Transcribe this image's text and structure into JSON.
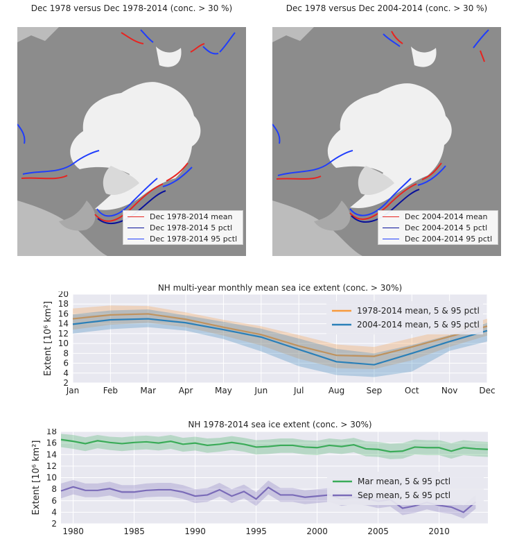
{
  "maps": [
    {
      "title": "Dec 1978 versus Dec 1978-2014 (conc. > 30 %)",
      "legend": [
        "Dec 1978-2014 mean",
        "Dec 1978-2014 5 pctl",
        "Dec 1978-2014 95 pctl"
      ]
    },
    {
      "title": "Dec 1978 versus Dec 2004-2014 (conc. > 30 %)",
      "legend": [
        "Dec 2004-2014 mean",
        "Dec 2004-2014 5 pctl",
        "Dec 2004-2014 95 pctl"
      ]
    }
  ],
  "colors": {
    "land": "#8c8c8c",
    "ice": "#f0f0f0",
    "ocean_outside": "#bcbcbc",
    "mean": "#e8231f",
    "p5": "#08109a",
    "p95": "#1f3dfc",
    "orange": "#f89a3c",
    "steel": "#2a7fb8",
    "green": "#3aab58",
    "purple": "#7a6bb8",
    "axes_bg": "#e8e8f0"
  },
  "chart_data": [
    {
      "type": "line",
      "title": "NH multi-year monthly mean sea ice extent (conc. > 30%)",
      "xlabel": "",
      "ylabel": "Extent [10⁶ km²]",
      "ylim": [
        2,
        20
      ],
      "yticks": [
        2,
        4,
        6,
        8,
        10,
        12,
        14,
        16,
        18,
        20
      ],
      "categories": [
        "Jan",
        "Feb",
        "Mar",
        "Apr",
        "May",
        "Jun",
        "Jul",
        "Aug",
        "Sep",
        "Oct",
        "Nov",
        "Dec"
      ],
      "legend_position": "upper-right",
      "series": [
        {
          "name": "1978-2014 mean, 5 & 95 pctl",
          "color": "orange",
          "values": [
            15.0,
            15.8,
            16.0,
            14.9,
            13.3,
            11.8,
            9.5,
            7.6,
            7.4,
            9.3,
            11.4,
            13.5
          ],
          "p5": [
            12.8,
            13.8,
            14.2,
            13.3,
            11.6,
            9.6,
            6.9,
            5.0,
            4.8,
            6.6,
            9.3,
            11.6
          ],
          "p95": [
            17.1,
            17.7,
            17.6,
            16.3,
            14.8,
            13.5,
            11.7,
            9.8,
            9.3,
            11.1,
            12.9,
            15.0
          ]
        },
        {
          "name": "2004-2014 mean, 5 & 95 pctl",
          "color": "steel",
          "values": [
            13.9,
            14.8,
            15.0,
            14.2,
            12.8,
            11.3,
            8.8,
            6.3,
            5.7,
            8.0,
            10.4,
            12.6
          ],
          "p5": [
            12.0,
            12.9,
            13.3,
            12.6,
            10.9,
            8.4,
            5.4,
            3.6,
            3.2,
            4.3,
            8.5,
            10.4
          ],
          "p95": [
            15.9,
            16.7,
            16.9,
            15.7,
            14.4,
            13.0,
            11.0,
            8.9,
            8.0,
            9.7,
            11.7,
            14.2
          ]
        }
      ]
    },
    {
      "type": "line",
      "title": "NH 1978-2014 sea ice extent (conc. > 30%)",
      "xlabel": "",
      "ylabel": "Extent [10⁶ km²]",
      "xlim": [
        1979,
        2014
      ],
      "ylim": [
        2,
        18
      ],
      "xticks": [
        1980,
        1985,
        1990,
        1995,
        2000,
        2005,
        2010
      ],
      "yticks": [
        2,
        4,
        6,
        8,
        10,
        12,
        14,
        16,
        18
      ],
      "legend_position": "right",
      "x": [
        1979,
        1980,
        1981,
        1982,
        1983,
        1984,
        1985,
        1986,
        1987,
        1988,
        1989,
        1990,
        1991,
        1992,
        1993,
        1994,
        1995,
        1996,
        1997,
        1998,
        1999,
        2000,
        2001,
        2002,
        2003,
        2004,
        2005,
        2006,
        2007,
        2008,
        2009,
        2010,
        2011,
        2012,
        2013,
        2014
      ],
      "series": [
        {
          "name": "Mar mean, 5 & 95 pctl",
          "color": "green",
          "values": [
            16.6,
            16.3,
            15.9,
            16.4,
            16.1,
            15.9,
            16.1,
            16.2,
            16.0,
            16.3,
            15.8,
            16.0,
            15.6,
            15.8,
            16.1,
            15.8,
            15.3,
            15.4,
            15.6,
            15.6,
            15.3,
            15.2,
            15.6,
            15.4,
            15.7,
            15.0,
            14.9,
            14.5,
            14.6,
            15.3,
            15.2,
            15.2,
            14.6,
            15.2,
            15.0,
            14.9
          ],
          "p5": [
            15.3,
            15.0,
            14.6,
            15.1,
            14.8,
            14.6,
            14.8,
            14.9,
            14.7,
            15.0,
            14.5,
            14.7,
            14.3,
            14.5,
            14.8,
            14.5,
            14.0,
            14.1,
            14.3,
            14.3,
            14.0,
            13.9,
            14.3,
            14.1,
            14.4,
            13.7,
            13.6,
            13.2,
            13.3,
            14.0,
            13.9,
            13.9,
            13.3,
            13.9,
            13.7,
            13.6
          ],
          "p95": [
            17.6,
            17.4,
            17.0,
            17.4,
            17.1,
            17.0,
            17.2,
            17.3,
            17.1,
            17.4,
            16.9,
            17.1,
            16.8,
            16.9,
            17.2,
            16.9,
            16.5,
            16.6,
            16.8,
            16.8,
            16.5,
            16.4,
            16.8,
            16.6,
            16.9,
            16.3,
            16.2,
            15.9,
            16.0,
            16.6,
            16.5,
            16.5,
            16.0,
            16.5,
            16.3,
            16.2
          ]
        },
        {
          "name": "Sep mean, 5 & 95 pctl",
          "color": "purple",
          "values": [
            7.7,
            8.4,
            7.8,
            7.8,
            8.1,
            7.5,
            7.5,
            7.8,
            7.9,
            7.9,
            7.5,
            6.8,
            7.0,
            7.9,
            6.8,
            7.6,
            6.3,
            8.3,
            7.0,
            7.0,
            6.6,
            6.8,
            7.0,
            6.3,
            6.6,
            6.4,
            5.9,
            6.2,
            4.7,
            5.1,
            5.7,
            5.2,
            4.9,
            4.0,
            5.8,
            null
          ],
          "p5": [
            6.4,
            7.1,
            6.6,
            6.6,
            6.9,
            6.3,
            6.3,
            6.6,
            6.7,
            6.7,
            6.3,
            5.6,
            5.8,
            6.7,
            5.6,
            6.4,
            5.1,
            7.1,
            5.8,
            5.8,
            5.4,
            5.6,
            5.8,
            5.1,
            5.4,
            5.2,
            4.7,
            5.0,
            3.5,
            3.9,
            4.5,
            4.0,
            3.7,
            2.9,
            4.6,
            null
          ],
          "p95": [
            9.0,
            9.6,
            9.0,
            9.0,
            9.3,
            8.7,
            8.7,
            9.0,
            9.1,
            9.1,
            8.7,
            8.0,
            8.2,
            9.1,
            8.0,
            8.8,
            7.5,
            9.5,
            8.2,
            8.2,
            7.8,
            8.0,
            8.2,
            7.5,
            7.8,
            7.6,
            7.1,
            7.4,
            5.9,
            6.3,
            6.9,
            6.4,
            6.1,
            5.2,
            7.0,
            null
          ]
        }
      ]
    }
  ]
}
